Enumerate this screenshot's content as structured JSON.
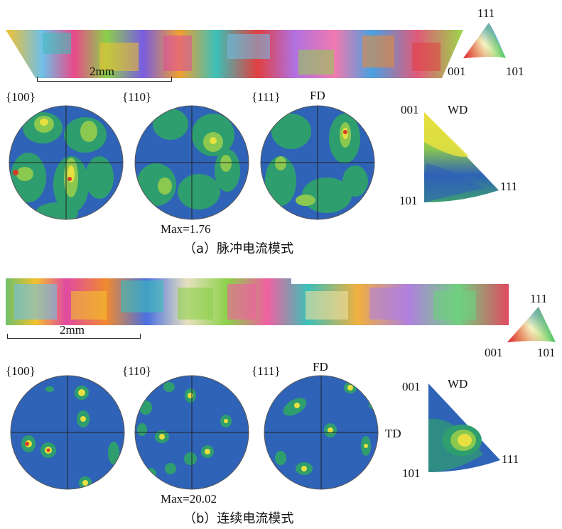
{
  "panel_a": {
    "scale_label": "2mm",
    "key_triangle": {
      "top": "111",
      "left": "001",
      "right": "101"
    },
    "pole_figures": {
      "pf1": "{100}",
      "pf2": "{110}",
      "pf3": "{111}",
      "fd": "FD"
    },
    "max_label": "Max=1.76",
    "ipf": {
      "top": "001",
      "wd": "WD",
      "right": "111",
      "bottom": "101"
    },
    "caption": "（a）脉冲电流模式"
  },
  "panel_b": {
    "scale_label": "2mm",
    "key_triangle": {
      "top": "111",
      "left": "001",
      "right": "101"
    },
    "pole_figures": {
      "pf1": "{100}",
      "pf2": "{110}",
      "pf3": "{111}",
      "fd": "FD",
      "td": "TD"
    },
    "max_label": "Max=20.02",
    "ipf": {
      "top": "001",
      "wd": "WD",
      "right": "111",
      "bottom": "101"
    },
    "caption": "（b）连续电流模式"
  },
  "colors": {
    "pf_background": "#2f63b8",
    "pf_mid": "#2f9e6e",
    "pf_high": "#e8e040",
    "pf_peak": "#d63a2b"
  }
}
